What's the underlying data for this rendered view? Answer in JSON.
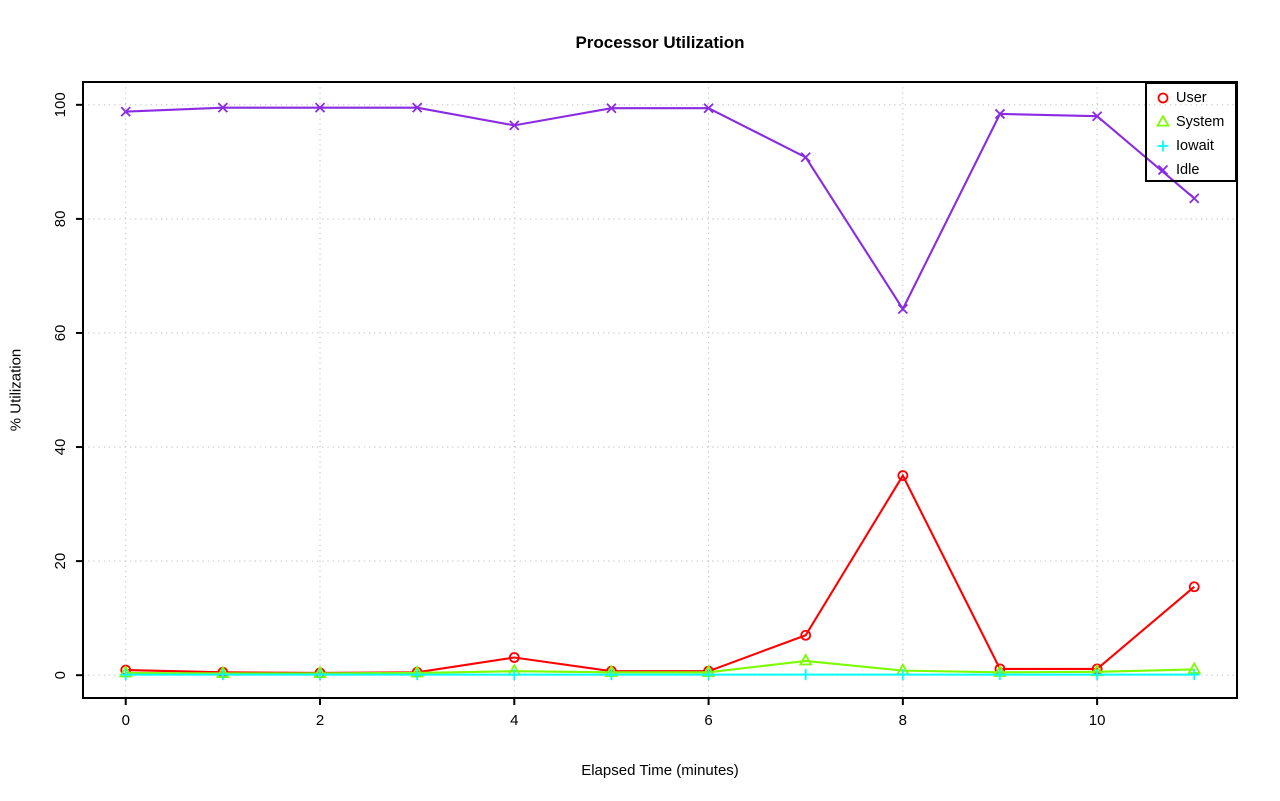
{
  "title": "Processor Utilization",
  "chart_data": {
    "type": "line",
    "title": "Processor Utilization",
    "xlabel": "Elapsed Time (minutes)",
    "ylabel": "% Utilization",
    "x": [
      0,
      1,
      2,
      3,
      4,
      5,
      6,
      7,
      8,
      9,
      10,
      11
    ],
    "series": [
      {
        "name": "User",
        "color": "#ff0000",
        "marker": "circle",
        "values": [
          0.9,
          0.5,
          0.4,
          0.5,
          3.1,
          0.7,
          0.7,
          7.0,
          35.0,
          1.1,
          1.1,
          15.5
        ]
      },
      {
        "name": "System",
        "color": "#7cfc00",
        "marker": "triangle",
        "values": [
          0.4,
          0.3,
          0.3,
          0.4,
          0.7,
          0.5,
          0.5,
          2.5,
          0.8,
          0.5,
          0.6,
          1.0
        ]
      },
      {
        "name": "Iowait",
        "color": "#00ffff",
        "marker": "plus",
        "values": [
          0.1,
          0.1,
          0.1,
          0.1,
          0.1,
          0.1,
          0.1,
          0.1,
          0.1,
          0.1,
          0.1,
          0.1
        ]
      },
      {
        "name": "Idle",
        "color": "#8a2be2",
        "marker": "x",
        "values": [
          98.8,
          99.5,
          99.5,
          99.5,
          96.4,
          99.4,
          99.4,
          90.8,
          64.2,
          98.4,
          98.0,
          83.6
        ]
      }
    ],
    "xlim": [
      -0.44,
      11.44
    ],
    "ylim": [
      -4,
      104
    ],
    "xticks": [
      0,
      2,
      4,
      6,
      8,
      10
    ],
    "yticks": [
      0,
      20,
      40,
      60,
      80,
      100
    ],
    "grid": true,
    "grid_color": "#c6c6c6",
    "axis_color": "#000000",
    "legend_position": "top-right"
  }
}
